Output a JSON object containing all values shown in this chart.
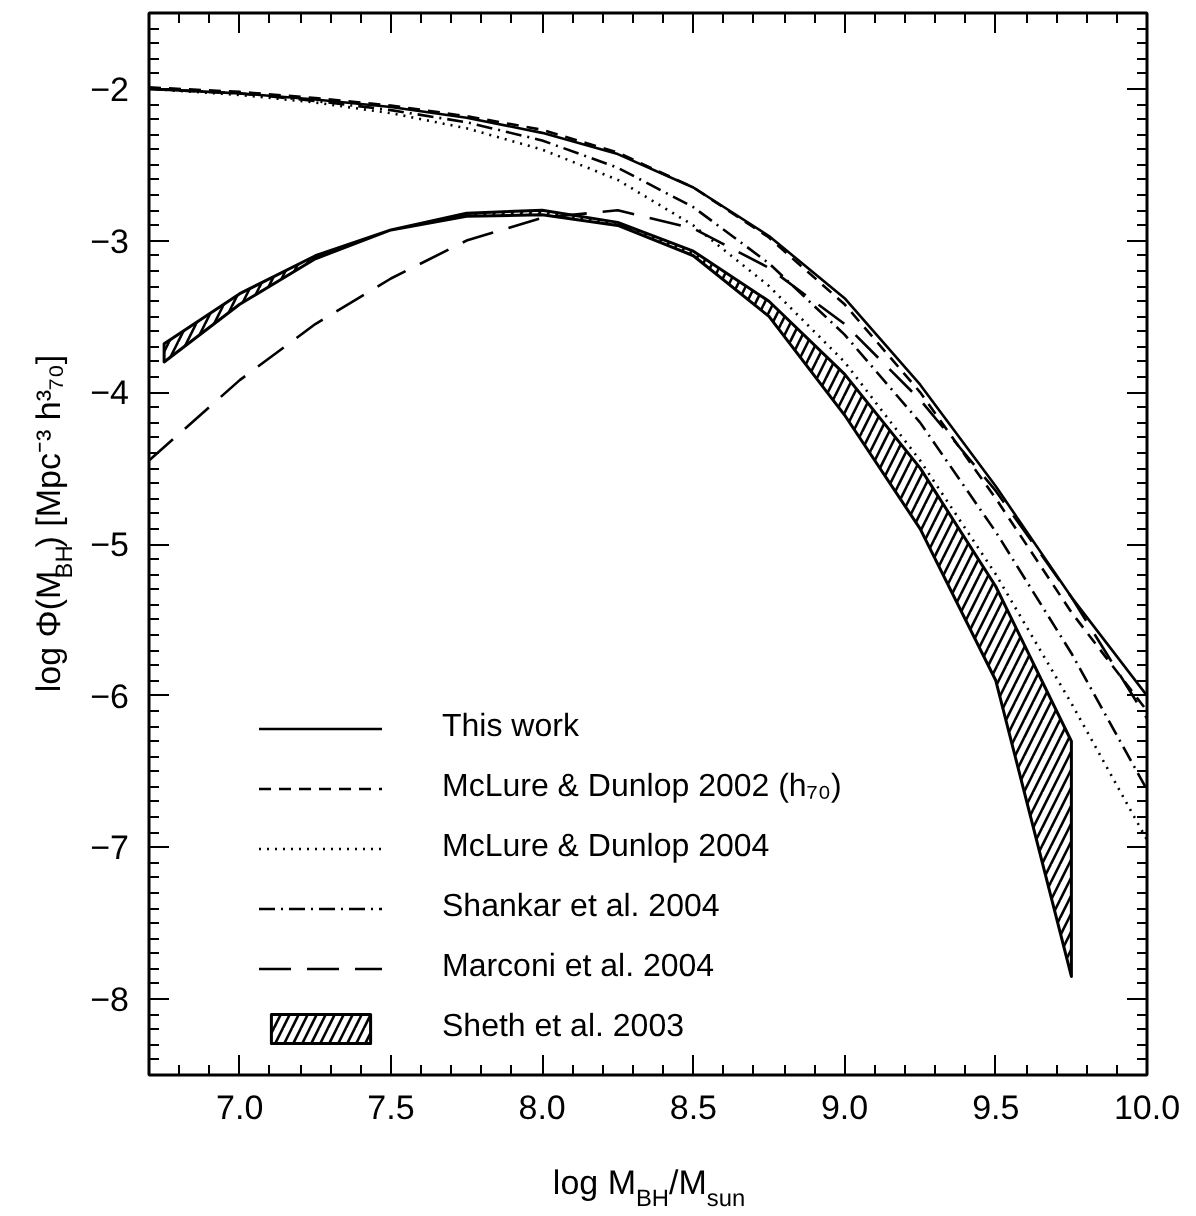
{
  "chart_data": {
    "type": "line",
    "xlabel": "log M$_{BH}$/M$_{sun}$",
    "ylabel": "log Φ(M$_{BH}$) [Mpc⁻³ h³₇₀]",
    "x": [
      6.7,
      7.0,
      7.25,
      7.5,
      7.75,
      8.0,
      8.25,
      8.5,
      8.75,
      9.0,
      9.25,
      9.5,
      9.75,
      10.0
    ],
    "series": [
      {
        "name": "This work",
        "color": "#000000",
        "line_style": "solid",
        "values": [
          -2.0,
          -2.03,
          -2.07,
          -2.12,
          -2.19,
          -2.29,
          -2.43,
          -2.65,
          -2.97,
          -3.38,
          -3.95,
          -4.62,
          -5.35,
          -6.0
        ]
      },
      {
        "name": "McLure & Dunlop 2002 (h₇₀)",
        "color": "#000000",
        "line_style": "dashed",
        "values": [
          -1.99,
          -2.02,
          -2.06,
          -2.11,
          -2.18,
          -2.27,
          -2.42,
          -2.65,
          -2.98,
          -3.42,
          -4.0,
          -4.7,
          -5.45,
          -6.1
        ]
      },
      {
        "name": "McLure & Dunlop 2004",
        "color": "#000000",
        "line_style": "dotted",
        "values": [
          -2.0,
          -2.04,
          -2.09,
          -2.16,
          -2.26,
          -2.4,
          -2.6,
          -2.9,
          -3.3,
          -3.8,
          -4.45,
          -5.2,
          -6.05,
          -6.95
        ]
      },
      {
        "name": "Shankar et al. 2004",
        "color": "#000000",
        "line_style": "dashdot",
        "values": [
          -2.0,
          -2.03,
          -2.08,
          -2.14,
          -2.22,
          -2.34,
          -2.52,
          -2.78,
          -3.15,
          -3.62,
          -4.2,
          -4.92,
          -5.72,
          -6.62
        ]
      },
      {
        "name": "Marconi et al. 2004",
        "color": "#000000",
        "line_style": "longdash",
        "values": [
          -4.45,
          -3.92,
          -3.55,
          -3.25,
          -3.0,
          -2.85,
          -2.8,
          -2.92,
          -3.18,
          -3.55,
          -4.05,
          -4.65,
          -5.35,
          -6.15
        ]
      },
      {
        "name": "Sheth et al. 2003",
        "color": "#000000",
        "x": [
          6.75,
          7.0,
          7.25,
          7.5,
          7.75,
          8.0,
          8.25,
          8.5,
          8.75,
          9.0,
          9.25,
          9.5,
          9.75
        ],
        "values": [
          null,
          null,
          null,
          null,
          null,
          null,
          null,
          null,
          null,
          null,
          null,
          null,
          null
        ],
        "upper": [
          -3.68,
          -3.35,
          -3.1,
          -2.93,
          -2.82,
          -2.8,
          -2.88,
          -3.07,
          -3.4,
          -3.88,
          -4.5,
          -5.28,
          -6.3
        ],
        "lower": [
          -3.8,
          -3.42,
          -3.12,
          -2.93,
          -2.84,
          -2.83,
          -2.9,
          -3.1,
          -3.5,
          -4.15,
          -4.9,
          -5.9,
          -7.85
        ]
      }
    ],
    "xlim": [
      6.7,
      10.0
    ],
    "xticks": [
      {
        "value": 7.0,
        "label": "7.0"
      },
      {
        "value": 7.5,
        "label": "7.5"
      },
      {
        "value": 8.0,
        "label": "8.0"
      },
      {
        "value": 8.5,
        "label": "8.5"
      },
      {
        "value": 9.0,
        "label": "9.0"
      },
      {
        "value": 9.5,
        "label": "9.5"
      },
      {
        "value": 10.0,
        "label": "10.0"
      }
    ],
    "ylim": [
      -8.5,
      -1.5
    ],
    "yticks": [
      {
        "value": -8,
        "label": "−8"
      },
      {
        "value": -7,
        "label": "−7"
      },
      {
        "value": -6,
        "label": "−6"
      },
      {
        "value": -5,
        "label": "−5"
      },
      {
        "value": -4,
        "label": "−4"
      },
      {
        "value": -3,
        "label": "−3"
      },
      {
        "value": -2,
        "label": "−2"
      }
    ],
    "grid": false,
    "legend": "bottom left"
  }
}
